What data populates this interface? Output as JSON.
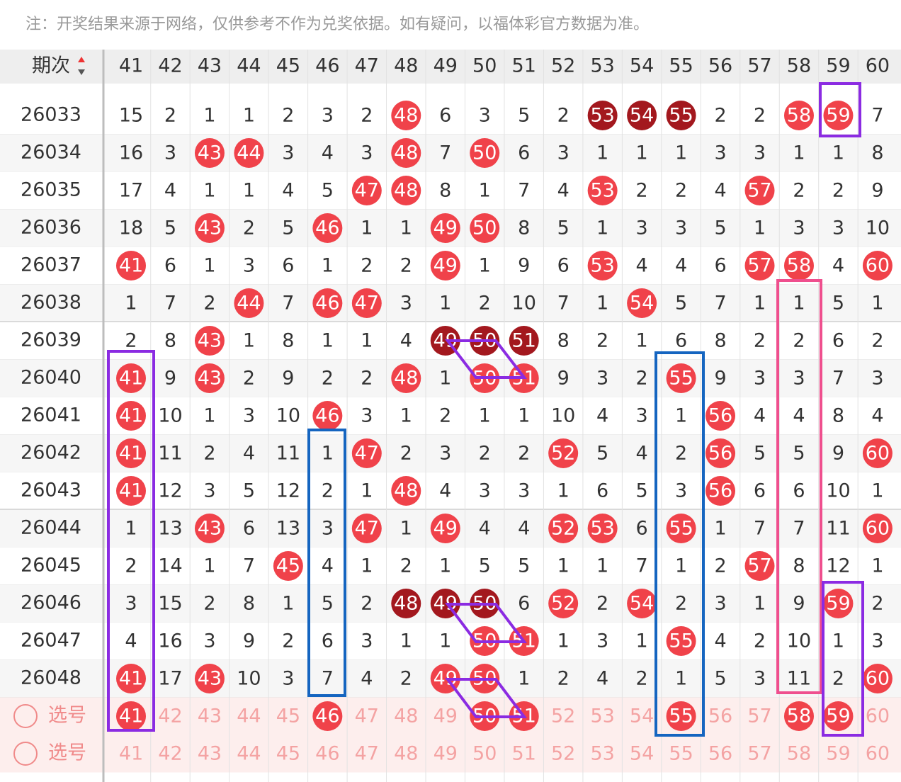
{
  "note": "注：开奖结果来源于网络，仅供参考不作为兑奖依据。如有疑问，以福体彩官方数据为准。",
  "header": {
    "label": "期次",
    "columns": [
      41,
      42,
      43,
      44,
      45,
      46,
      47,
      48,
      49,
      50,
      51,
      52,
      53,
      54,
      55,
      56,
      57,
      58,
      59,
      60
    ]
  },
  "rows": [
    {
      "period": "26033",
      "cells": [
        15,
        2,
        1,
        1,
        2,
        3,
        2,
        48,
        6,
        3,
        5,
        2,
        53,
        54,
        55,
        2,
        2,
        58,
        59,
        7
      ],
      "dark": [
        12,
        13,
        14
      ]
    },
    {
      "period": "26034",
      "cells": [
        16,
        3,
        43,
        44,
        3,
        4,
        3,
        48,
        7,
        50,
        6,
        3,
        1,
        1,
        1,
        3,
        3,
        1,
        1,
        8
      ]
    },
    {
      "period": "26035",
      "cells": [
        17,
        4,
        1,
        1,
        4,
        5,
        47,
        48,
        8,
        1,
        7,
        4,
        53,
        2,
        2,
        4,
        57,
        2,
        2,
        9
      ]
    },
    {
      "period": "26036",
      "cells": [
        18,
        5,
        43,
        2,
        5,
        46,
        1,
        1,
        49,
        50,
        8,
        5,
        1,
        3,
        3,
        5,
        1,
        3,
        3,
        10
      ]
    },
    {
      "period": "26037",
      "cells": [
        41,
        6,
        1,
        3,
        6,
        1,
        2,
        2,
        49,
        1,
        9,
        6,
        53,
        4,
        4,
        6,
        57,
        58,
        4,
        60
      ]
    },
    {
      "period": "26038",
      "cells": [
        1,
        7,
        2,
        44,
        7,
        46,
        47,
        3,
        1,
        2,
        10,
        7,
        1,
        54,
        5,
        7,
        1,
        1,
        5,
        1
      ]
    },
    {
      "period": "26039",
      "cells": [
        2,
        8,
        43,
        1,
        8,
        1,
        1,
        4,
        49,
        50,
        51,
        8,
        2,
        1,
        6,
        8,
        2,
        2,
        6,
        2
      ],
      "dark": [
        8,
        9,
        10
      ]
    },
    {
      "period": "26040",
      "cells": [
        41,
        9,
        43,
        2,
        9,
        2,
        2,
        48,
        1,
        50,
        51,
        9,
        3,
        2,
        55,
        9,
        3,
        3,
        7,
        3
      ]
    },
    {
      "period": "26041",
      "cells": [
        41,
        10,
        1,
        3,
        10,
        46,
        3,
        1,
        2,
        1,
        1,
        10,
        4,
        3,
        1,
        56,
        4,
        4,
        8,
        4
      ]
    },
    {
      "period": "26042",
      "cells": [
        41,
        11,
        2,
        4,
        11,
        1,
        47,
        2,
        3,
        2,
        2,
        52,
        5,
        4,
        2,
        56,
        5,
        5,
        9,
        60
      ]
    },
    {
      "period": "26043",
      "cells": [
        41,
        12,
        3,
        5,
        12,
        2,
        1,
        48,
        4,
        3,
        3,
        1,
        6,
        5,
        3,
        56,
        6,
        6,
        10,
        1
      ]
    },
    {
      "period": "26044",
      "cells": [
        1,
        13,
        43,
        6,
        13,
        3,
        47,
        1,
        49,
        4,
        4,
        52,
        53,
        6,
        55,
        1,
        7,
        7,
        11,
        60
      ]
    },
    {
      "period": "26045",
      "cells": [
        2,
        14,
        1,
        7,
        45,
        4,
        1,
        2,
        1,
        5,
        5,
        1,
        1,
        7,
        1,
        2,
        57,
        8,
        12,
        1
      ]
    },
    {
      "period": "26046",
      "cells": [
        3,
        15,
        2,
        8,
        1,
        5,
        2,
        48,
        49,
        50,
        6,
        52,
        2,
        54,
        2,
        3,
        1,
        9,
        59,
        2
      ],
      "dark": [
        7,
        8,
        9
      ]
    },
    {
      "period": "26047",
      "cells": [
        4,
        16,
        3,
        9,
        2,
        6,
        3,
        1,
        1,
        50,
        51,
        1,
        3,
        1,
        55,
        4,
        2,
        10,
        1,
        3
      ]
    },
    {
      "period": "26048",
      "cells": [
        41,
        17,
        43,
        10,
        3,
        7,
        4,
        2,
        49,
        50,
        1,
        2,
        4,
        2,
        1,
        5,
        3,
        11,
        2,
        60
      ]
    }
  ],
  "pick_rows": [
    {
      "label": "选号",
      "picked": [
        41,
        46,
        50,
        51,
        55,
        58,
        59
      ]
    },
    {
      "label": "选号",
      "picked": []
    }
  ]
}
